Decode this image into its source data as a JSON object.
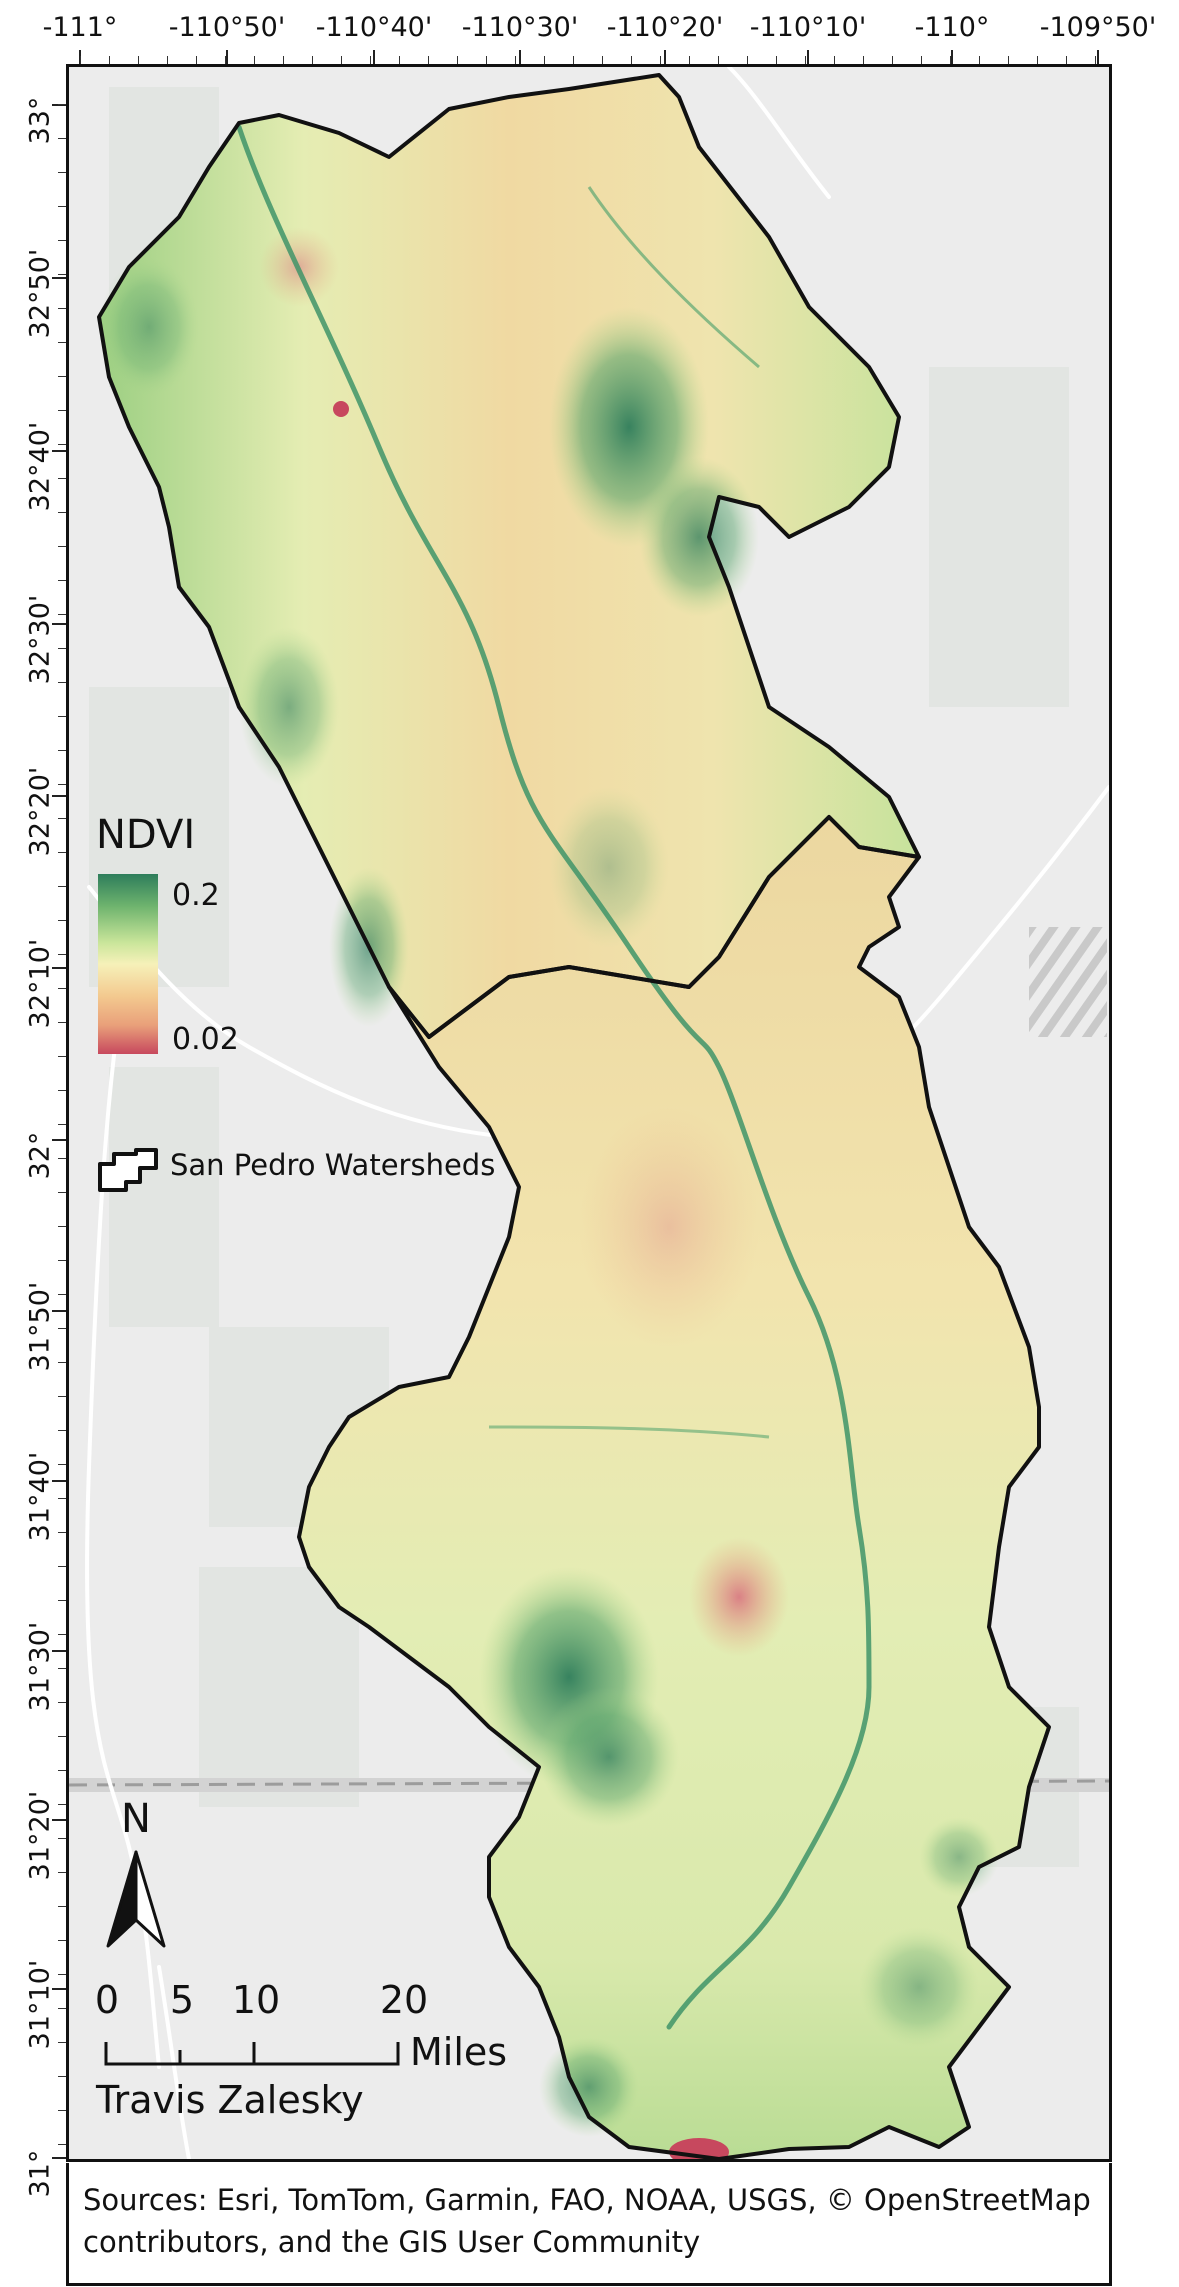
{
  "axes": {
    "top_ticks": [
      "-111°",
      "-110°50'",
      "-110°40'",
      "-110°30'",
      "-110°20'",
      "-110°10'",
      "-110°",
      "-109°50'"
    ],
    "left_ticks": [
      "33°",
      "32°50'",
      "32°40'",
      "32°30'",
      "32°20'",
      "32°10'",
      "32°",
      "31°50'",
      "31°40'",
      "31°30'",
      "31°20'",
      "31°10'",
      "31°"
    ]
  },
  "legend": {
    "title": "NDVI",
    "max_label": "0.2",
    "min_label": "0.02",
    "ramp_colors": [
      "#2e7d5b",
      "#6fb46e",
      "#c9e59a",
      "#f6f1b9",
      "#f3c98f",
      "#e9a07a",
      "#c7485e"
    ],
    "watersheds_label": "San Pedro Watersheds"
  },
  "north_arrow": {
    "label": "N"
  },
  "scale_bar": {
    "ticks": [
      "0",
      "5",
      "10",
      "20"
    ],
    "unit": "Miles"
  },
  "author": "Travis Zalesky",
  "sources": "Sources: Esri, TomTom, Garmin, FAO, NOAA, USGS, © OpenStreetMap contributors, and the GIS User Community",
  "colors": {
    "basemap": "#ececec",
    "outline": "#111111",
    "roads": "#ffffff"
  }
}
